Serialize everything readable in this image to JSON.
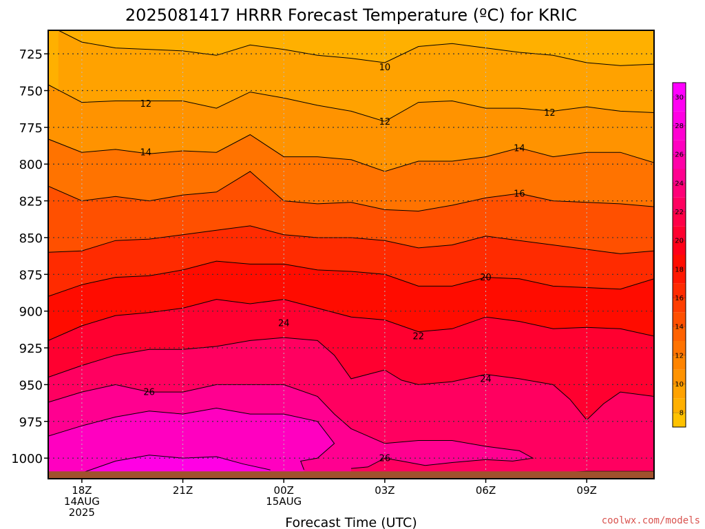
{
  "chart_data": {
    "type": "heatmap",
    "title": "2025081417 HRRR Forecast Temperature (ºC) for KRIC",
    "xlabel": "Forecast Time (UTC)",
    "ylabel": "",
    "x_ticks": [
      {
        "hour": 18,
        "lines": [
          "18Z",
          "14AUG",
          "2025"
        ]
      },
      {
        "hour": 21,
        "lines": [
          "21Z"
        ]
      },
      {
        "hour": 24,
        "lines": [
          "00Z",
          "15AUG"
        ]
      },
      {
        "hour": 27,
        "lines": [
          "03Z"
        ]
      },
      {
        "hour": 30,
        "lines": [
          "06Z"
        ]
      },
      {
        "hour": 33,
        "lines": [
          "09Z"
        ]
      }
    ],
    "x_range": [
      17,
      35
    ],
    "y_ticks": [
      725,
      750,
      775,
      800,
      825,
      850,
      875,
      900,
      925,
      950,
      975,
      1000
    ],
    "y_range": [
      709,
      1014
    ],
    "y_reversed": true,
    "contour_interval": 1,
    "labeled_contours": [
      {
        "value": "10",
        "hour": 27.0,
        "pressure": 734
      },
      {
        "value": "12",
        "hour": 19.9,
        "pressure": 759
      },
      {
        "value": "12",
        "hour": 27.0,
        "pressure": 771
      },
      {
        "value": "12",
        "hour": 31.9,
        "pressure": 765
      },
      {
        "value": "14",
        "hour": 19.9,
        "pressure": 792
      },
      {
        "value": "14",
        "hour": 31.0,
        "pressure": 789
      },
      {
        "value": "16",
        "hour": 31.0,
        "pressure": 820
      },
      {
        "value": "20",
        "hour": 30.0,
        "pressure": 877
      },
      {
        "value": "22",
        "hour": 28.0,
        "pressure": 917
      },
      {
        "value": "24",
        "hour": 24.0,
        "pressure": 908
      },
      {
        "value": "24",
        "hour": 30.0,
        "pressure": 946
      },
      {
        "value": "26",
        "hour": 20.0,
        "pressure": 955
      },
      {
        "value": "26",
        "hour": 27.0,
        "pressure": 1000
      }
    ],
    "colorbar": {
      "ticks": [
        8,
        10,
        12,
        14,
        16,
        18,
        20,
        22,
        24,
        26,
        28,
        30
      ],
      "bins": [
        {
          "from": 7,
          "to": 8,
          "color": "#ffc200"
        },
        {
          "from": 8,
          "to": 9,
          "color": "#ffb000"
        },
        {
          "from": 9,
          "to": 10,
          "color": "#ffa200"
        },
        {
          "from": 10,
          "to": 11,
          "color": "#ff9300"
        },
        {
          "from": 11,
          "to": 12,
          "color": "#ff8400"
        },
        {
          "from": 12,
          "to": 13,
          "color": "#ff7300"
        },
        {
          "from": 13,
          "to": 14,
          "color": "#ff6200"
        },
        {
          "from": 14,
          "to": 15,
          "color": "#ff5000"
        },
        {
          "from": 15,
          "to": 16,
          "color": "#ff3e00"
        },
        {
          "from": 16,
          "to": 17,
          "color": "#ff2b00"
        },
        {
          "from": 17,
          "to": 18,
          "color": "#ff1800"
        },
        {
          "from": 18,
          "to": 19,
          "color": "#ff0c00"
        },
        {
          "from": 19,
          "to": 20,
          "color": "#ff0018"
        },
        {
          "from": 20,
          "to": 21,
          "color": "#ff0030"
        },
        {
          "from": 21,
          "to": 22,
          "color": "#ff0048"
        },
        {
          "from": 22,
          "to": 23,
          "color": "#ff0060"
        },
        {
          "from": 23,
          "to": 24,
          "color": "#ff0078"
        },
        {
          "from": 24,
          "to": 25,
          "color": "#ff0090"
        },
        {
          "from": 25,
          "to": 26,
          "color": "#ff00a8"
        },
        {
          "from": 26,
          "to": 27,
          "color": "#ff00c0"
        },
        {
          "from": 27,
          "to": 28,
          "color": "#ff00d2"
        },
        {
          "from": 28,
          "to": 29,
          "color": "#ff00e4"
        },
        {
          "from": 29,
          "to": 30,
          "color": "#ff00f2"
        },
        {
          "from": 30,
          "to": 31,
          "color": "#ff00ff"
        }
      ]
    },
    "contours": [
      {
        "value": 9,
        "points": [
          [
            17.3,
            709
          ],
          [
            18.0,
            717
          ],
          [
            19.0,
            721
          ],
          [
            20.0,
            722
          ],
          [
            21.0,
            723
          ],
          [
            22.0,
            726
          ],
          [
            23.0,
            719
          ],
          [
            24.0,
            722
          ],
          [
            25.0,
            726
          ],
          [
            26.0,
            728
          ],
          [
            27.0,
            731
          ],
          [
            28.0,
            720
          ],
          [
            29.0,
            718
          ],
          [
            30.0,
            721
          ],
          [
            31.0,
            724
          ],
          [
            32.0,
            726
          ],
          [
            33.0,
            731
          ],
          [
            34.0,
            733
          ],
          [
            35.0,
            732
          ]
        ]
      },
      {
        "value": 10,
        "points": [
          [
            17.0,
            746
          ],
          [
            18.0,
            758
          ],
          [
            19.0,
            757
          ],
          [
            20.0,
            757
          ],
          [
            21.0,
            757
          ],
          [
            22.0,
            762
          ],
          [
            23.0,
            751
          ],
          [
            24.0,
            755
          ],
          [
            25.0,
            760
          ],
          [
            26.0,
            764
          ],
          [
            27.0,
            771
          ],
          [
            28.0,
            758
          ],
          [
            29.0,
            757
          ],
          [
            30.0,
            762
          ],
          [
            31.0,
            762
          ],
          [
            32.0,
            764
          ],
          [
            33.0,
            761
          ],
          [
            34.0,
            764
          ],
          [
            35.0,
            765
          ]
        ]
      },
      {
        "value": 12,
        "points": [
          [
            17.0,
            783
          ],
          [
            18.0,
            792
          ],
          [
            19.0,
            790
          ],
          [
            20.0,
            793
          ],
          [
            21.0,
            791
          ],
          [
            22.0,
            792
          ],
          [
            23.0,
            780
          ],
          [
            24.0,
            795
          ],
          [
            25.0,
            795
          ],
          [
            26.0,
            797
          ],
          [
            27.0,
            805
          ],
          [
            28.0,
            798
          ],
          [
            29.0,
            798
          ],
          [
            30.0,
            795
          ],
          [
            31.0,
            789
          ],
          [
            32.0,
            795
          ],
          [
            33.0,
            792
          ],
          [
            34.0,
            792
          ],
          [
            35.0,
            799
          ]
        ]
      },
      {
        "value": 14,
        "points": [
          [
            17.0,
            815
          ],
          [
            18.0,
            825
          ],
          [
            19.0,
            822
          ],
          [
            20.0,
            825
          ],
          [
            21.0,
            821
          ],
          [
            22.0,
            819
          ],
          [
            23.0,
            805
          ],
          [
            24.0,
            825
          ],
          [
            25.0,
            827
          ],
          [
            26.0,
            826
          ],
          [
            27.0,
            831
          ],
          [
            28.0,
            832
          ],
          [
            29.0,
            828
          ],
          [
            30.0,
            823
          ],
          [
            31.0,
            820
          ],
          [
            32.0,
            825
          ],
          [
            33.0,
            826
          ],
          [
            34.0,
            827
          ],
          [
            35.0,
            829
          ]
        ]
      },
      {
        "value": 16,
        "points": [
          [
            17.0,
            860
          ],
          [
            18.0,
            859
          ],
          [
            19.0,
            852
          ],
          [
            20.0,
            851
          ],
          [
            21.0,
            848
          ],
          [
            22.0,
            845
          ],
          [
            23.0,
            842
          ],
          [
            24.0,
            848
          ],
          [
            25.0,
            850
          ],
          [
            26.0,
            850
          ],
          [
            27.0,
            852
          ],
          [
            28.0,
            857
          ],
          [
            29.0,
            855
          ],
          [
            30.0,
            849
          ],
          [
            31.0,
            852
          ],
          [
            32.0,
            855
          ],
          [
            33.0,
            858
          ],
          [
            34.0,
            861
          ],
          [
            35.0,
            859
          ]
        ]
      },
      {
        "value": 18,
        "points": [
          [
            17.0,
            890
          ],
          [
            18.0,
            882
          ],
          [
            19.0,
            877
          ],
          [
            20.0,
            876
          ],
          [
            21.0,
            872
          ],
          [
            22.0,
            866
          ],
          [
            23.0,
            868
          ],
          [
            24.0,
            868
          ],
          [
            25.0,
            872
          ],
          [
            26.0,
            873
          ],
          [
            27.0,
            875
          ],
          [
            28.0,
            883
          ],
          [
            29.0,
            883
          ],
          [
            30.0,
            877
          ],
          [
            31.0,
            878
          ],
          [
            32.0,
            883
          ],
          [
            33.0,
            884
          ],
          [
            34.0,
            885
          ],
          [
            35.0,
            878
          ]
        ]
      },
      {
        "value": 20,
        "points": [
          [
            17.0,
            920
          ],
          [
            18.0,
            910
          ],
          [
            19.0,
            903
          ],
          [
            20.0,
            901
          ],
          [
            21.0,
            898
          ],
          [
            22.0,
            892
          ],
          [
            23.0,
            895
          ],
          [
            24.0,
            892
          ],
          [
            25.0,
            898
          ],
          [
            26.0,
            904
          ],
          [
            27.0,
            906
          ],
          [
            28.0,
            914
          ],
          [
            29.0,
            912
          ],
          [
            30.0,
            904
          ],
          [
            31.0,
            907
          ],
          [
            32.0,
            912
          ],
          [
            33.0,
            911
          ],
          [
            34.0,
            912
          ],
          [
            35.0,
            917
          ]
        ]
      },
      {
        "value": 22,
        "points": [
          [
            17.0,
            945
          ],
          [
            18.0,
            937
          ],
          [
            19.0,
            930
          ],
          [
            20.0,
            926
          ],
          [
            21.0,
            926
          ],
          [
            22.0,
            924
          ],
          [
            23.0,
            920
          ],
          [
            24.0,
            918
          ],
          [
            25.0,
            920
          ],
          [
            25.5,
            930
          ],
          [
            26.0,
            946
          ],
          [
            26.5,
            943
          ],
          [
            27.0,
            940
          ],
          [
            27.5,
            947
          ],
          [
            28.0,
            950
          ],
          [
            29.0,
            948
          ],
          [
            30.0,
            943
          ],
          [
            31.0,
            946
          ],
          [
            32.0,
            950
          ],
          [
            32.5,
            960
          ],
          [
            33.0,
            974
          ],
          [
            33.5,
            963
          ],
          [
            34.0,
            955
          ],
          [
            35.0,
            958
          ]
        ]
      },
      {
        "value": 24,
        "points": [
          [
            17.0,
            962
          ],
          [
            18.0,
            955
          ],
          [
            19.0,
            950
          ],
          [
            20.0,
            955
          ],
          [
            21.0,
            955
          ],
          [
            22.0,
            950
          ],
          [
            23.0,
            950
          ],
          [
            24.0,
            950
          ],
          [
            25.0,
            958
          ],
          [
            25.5,
            970
          ],
          [
            26.0,
            980
          ],
          [
            26.5,
            985
          ],
          [
            27.0,
            990
          ],
          [
            28.0,
            988
          ],
          [
            29.0,
            988
          ],
          [
            30.0,
            992
          ],
          [
            31.0,
            995
          ],
          [
            31.4,
            1000
          ],
          [
            30.8,
            1002
          ],
          [
            30.0,
            1001
          ],
          [
            29.0,
            1003
          ],
          [
            28.2,
            1005
          ],
          [
            27.5,
            1002
          ],
          [
            27.0,
            1000
          ],
          [
            26.5,
            1006
          ],
          [
            26.0,
            1007
          ]
        ]
      },
      {
        "value": 26,
        "points": [
          [
            17.0,
            985
          ],
          [
            18.0,
            978
          ],
          [
            19.0,
            972
          ],
          [
            20.0,
            968
          ],
          [
            21.0,
            970
          ],
          [
            22.0,
            966
          ],
          [
            23.0,
            970
          ],
          [
            24.0,
            970
          ],
          [
            25.0,
            975
          ],
          [
            25.5,
            990
          ],
          [
            25.0,
            1000
          ],
          [
            24.5,
            1002
          ],
          [
            24.6,
            1008
          ]
        ]
      },
      {
        "value": 28,
        "points": [
          [
            18.0,
            1010
          ],
          [
            19.0,
            1002
          ],
          [
            20.0,
            998
          ],
          [
            21.0,
            1000
          ],
          [
            22.0,
            999
          ],
          [
            22.8,
            1004
          ],
          [
            23.6,
            1008
          ]
        ]
      },
      {
        "value": 28,
        "points": [
          [
            32.0,
            1010
          ],
          [
            33.0,
            1009
          ],
          [
            34.0,
            1009
          ],
          [
            35.0,
            1009
          ]
        ]
      }
    ],
    "ground": {
      "color": "#a0522d",
      "pressure": 1009
    }
  },
  "credit": "coolwx.com/models"
}
